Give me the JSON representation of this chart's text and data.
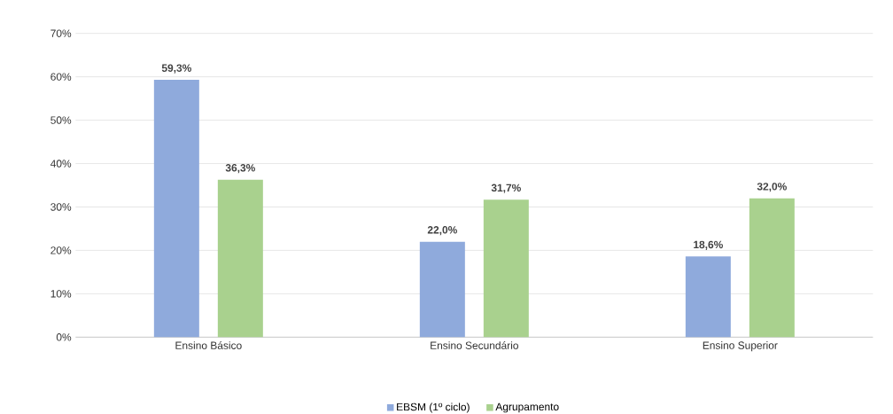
{
  "chart_data": {
    "type": "bar",
    "categories": [
      "Ensino Básico",
      "Ensino Secundário",
      "Ensino Superior"
    ],
    "series": [
      {
        "name": "EBSM (1º ciclo)",
        "color": "#8faadc",
        "values": [
          59.3,
          22.0,
          18.6
        ],
        "value_labels": [
          "59,3%",
          "22,0%",
          "18,6%"
        ]
      },
      {
        "name": "Agrupamento",
        "color": "#a9d18e",
        "values": [
          36.3,
          31.7,
          32.0
        ],
        "value_labels": [
          "36,3%",
          "31,7%",
          "32,0%"
        ]
      }
    ],
    "ylim": [
      0,
      70
    ],
    "yticks": [
      {
        "value": 0,
        "label": "0%"
      },
      {
        "value": 10,
        "label": "10%"
      },
      {
        "value": 20,
        "label": "20%"
      },
      {
        "value": 30,
        "label": "30%"
      },
      {
        "value": 40,
        "label": "40%"
      },
      {
        "value": 50,
        "label": "50%"
      },
      {
        "value": 60,
        "label": "60%"
      },
      {
        "value": 70,
        "label": "70%"
      }
    ],
    "grid": "y",
    "legend": "bottom"
  }
}
